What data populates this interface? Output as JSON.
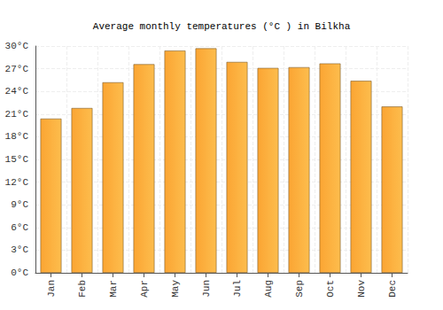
{
  "chart_data": {
    "type": "bar",
    "title": "Average monthly temperatures (°C ) in Bilkha",
    "categories": [
      "Jan",
      "Feb",
      "Mar",
      "Apr",
      "May",
      "Jun",
      "Jul",
      "Aug",
      "Sep",
      "Oct",
      "Nov",
      "Dec"
    ],
    "values": [
      20.4,
      21.8,
      25.2,
      27.6,
      29.4,
      29.7,
      27.9,
      27.1,
      27.2,
      27.7,
      25.4,
      22.0
    ],
    "color": "#fba533",
    "ylim": [
      0,
      30
    ],
    "yticks": [
      {
        "value": 0,
        "label": "0°C"
      },
      {
        "value": 3,
        "label": "3°C"
      },
      {
        "value": 6,
        "label": "6°C"
      },
      {
        "value": 9,
        "label": "9°C"
      },
      {
        "value": 12,
        "label": "12°C"
      },
      {
        "value": 15,
        "label": "15°C"
      },
      {
        "value": 18,
        "label": "18°C"
      },
      {
        "value": 21,
        "label": "21°C"
      },
      {
        "value": 24,
        "label": "24°C"
      },
      {
        "value": 27,
        "label": "27°C"
      },
      {
        "value": 30,
        "label": "30°C"
      }
    ],
    "grid": true
  }
}
